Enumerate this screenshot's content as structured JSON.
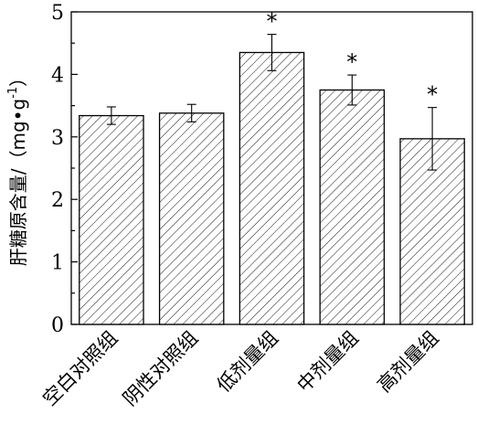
{
  "chart_data": {
    "type": "bar",
    "title": "",
    "xlabel": "",
    "ylabel": "肝糖原含量/（mg•g",
    "ylabel_superscript": "-1",
    "ylabel_close": "）",
    "ylim": [
      0,
      5
    ],
    "yticks": [
      "0",
      "1",
      "2",
      "3",
      "4",
      "5"
    ],
    "categories": [
      "空白对照组",
      "阴性对照组",
      "低剂量组",
      "中剂量组",
      "高剂量组"
    ],
    "values": [
      3.34,
      3.38,
      4.35,
      3.75,
      2.97
    ],
    "errors": [
      0.14,
      0.14,
      0.29,
      0.24,
      0.5
    ],
    "significance": [
      "",
      "",
      "*",
      "*",
      "*"
    ],
    "fill_pattern": "diagonal-hatch",
    "bar_stroke": "#000000",
    "bar_fill": "#ffffff",
    "grid": false,
    "legend": "none"
  }
}
